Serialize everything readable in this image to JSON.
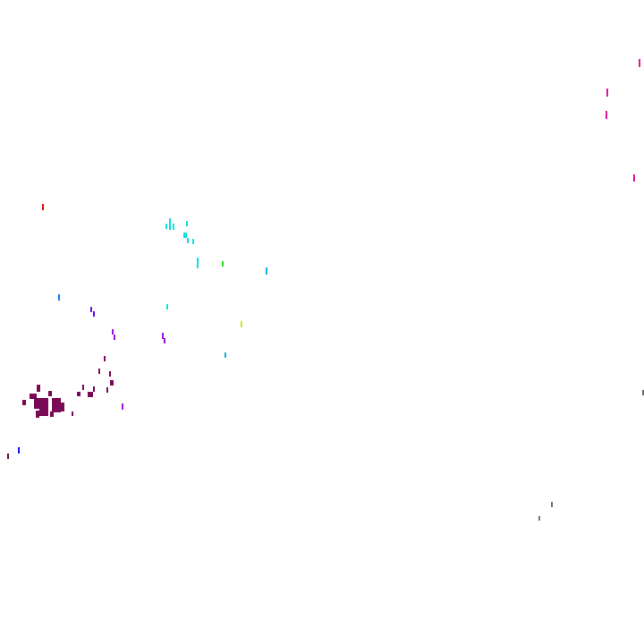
{
  "palette": {
    "background": "#ffffff",
    "maroon": "#7a0a55",
    "magenta": "#e0109a",
    "purple": "#9a10e0",
    "violet": "#6010f0",
    "blue": "#1010e0",
    "azure": "#2080f0",
    "cyan": "#10e0e0",
    "sky": "#10b0e0",
    "green": "#20e020",
    "lime": "#c0f010",
    "red": "#e01010",
    "gray": "#707070"
  }
}
